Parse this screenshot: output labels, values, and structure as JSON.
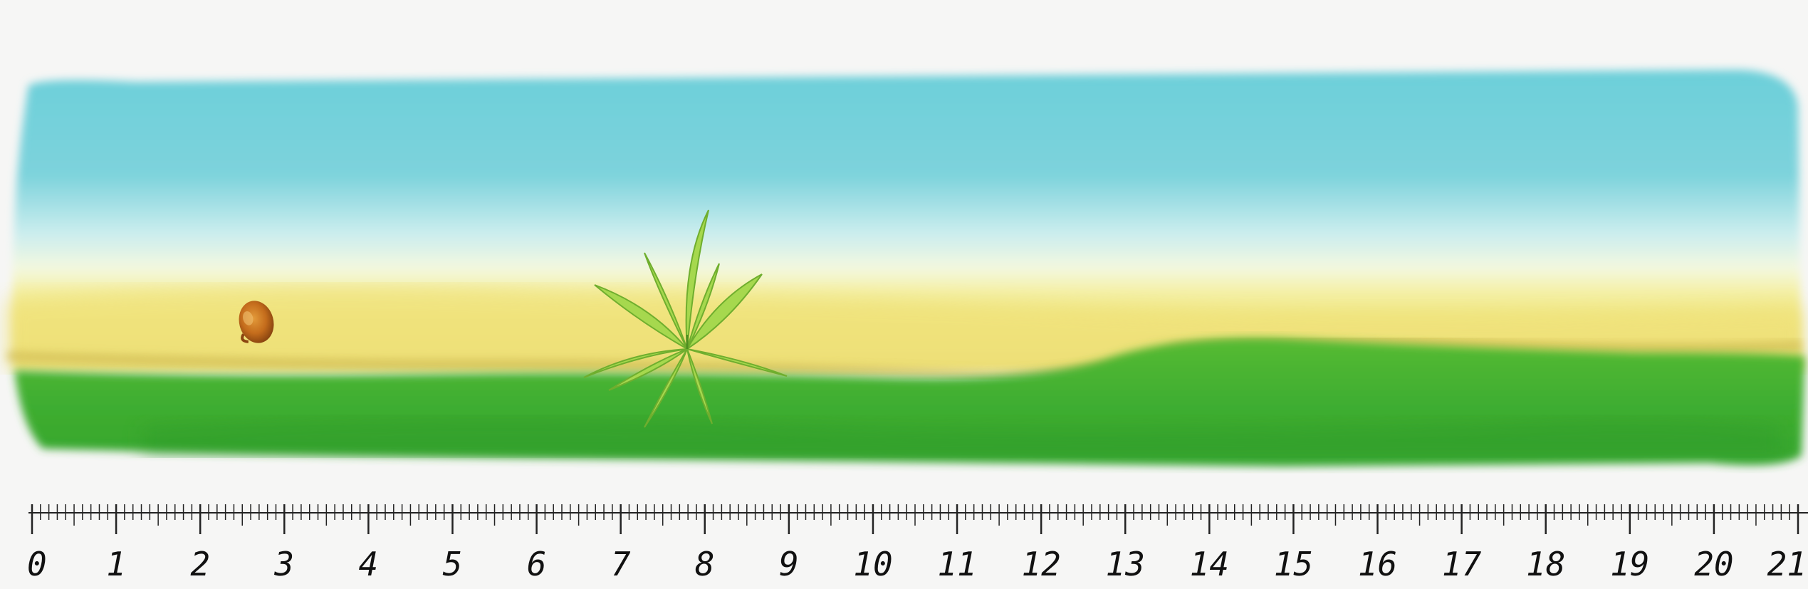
{
  "scene": {
    "description_icons": [
      "seed-icon",
      "cannabis-sprout-icon"
    ],
    "colors": {
      "sky_top": "#6ccfd9",
      "sky_mid": "#bfe9ec",
      "horizon_light": "#f2f7d8",
      "sand": "#f2ea8a",
      "grass": "#3fb032",
      "grass_dark": "#2f9a2a",
      "seed": "#c8741e",
      "leaf": "#9ed44a",
      "background": "#f6f6f5"
    }
  },
  "ruler": {
    "labels": [
      "0",
      "1",
      "2",
      "3",
      "4",
      "5",
      "6",
      "7",
      "8",
      "9",
      "10",
      "11",
      "12",
      "13",
      "14",
      "15",
      "16",
      "17",
      "18",
      "19",
      "20",
      "21"
    ]
  }
}
